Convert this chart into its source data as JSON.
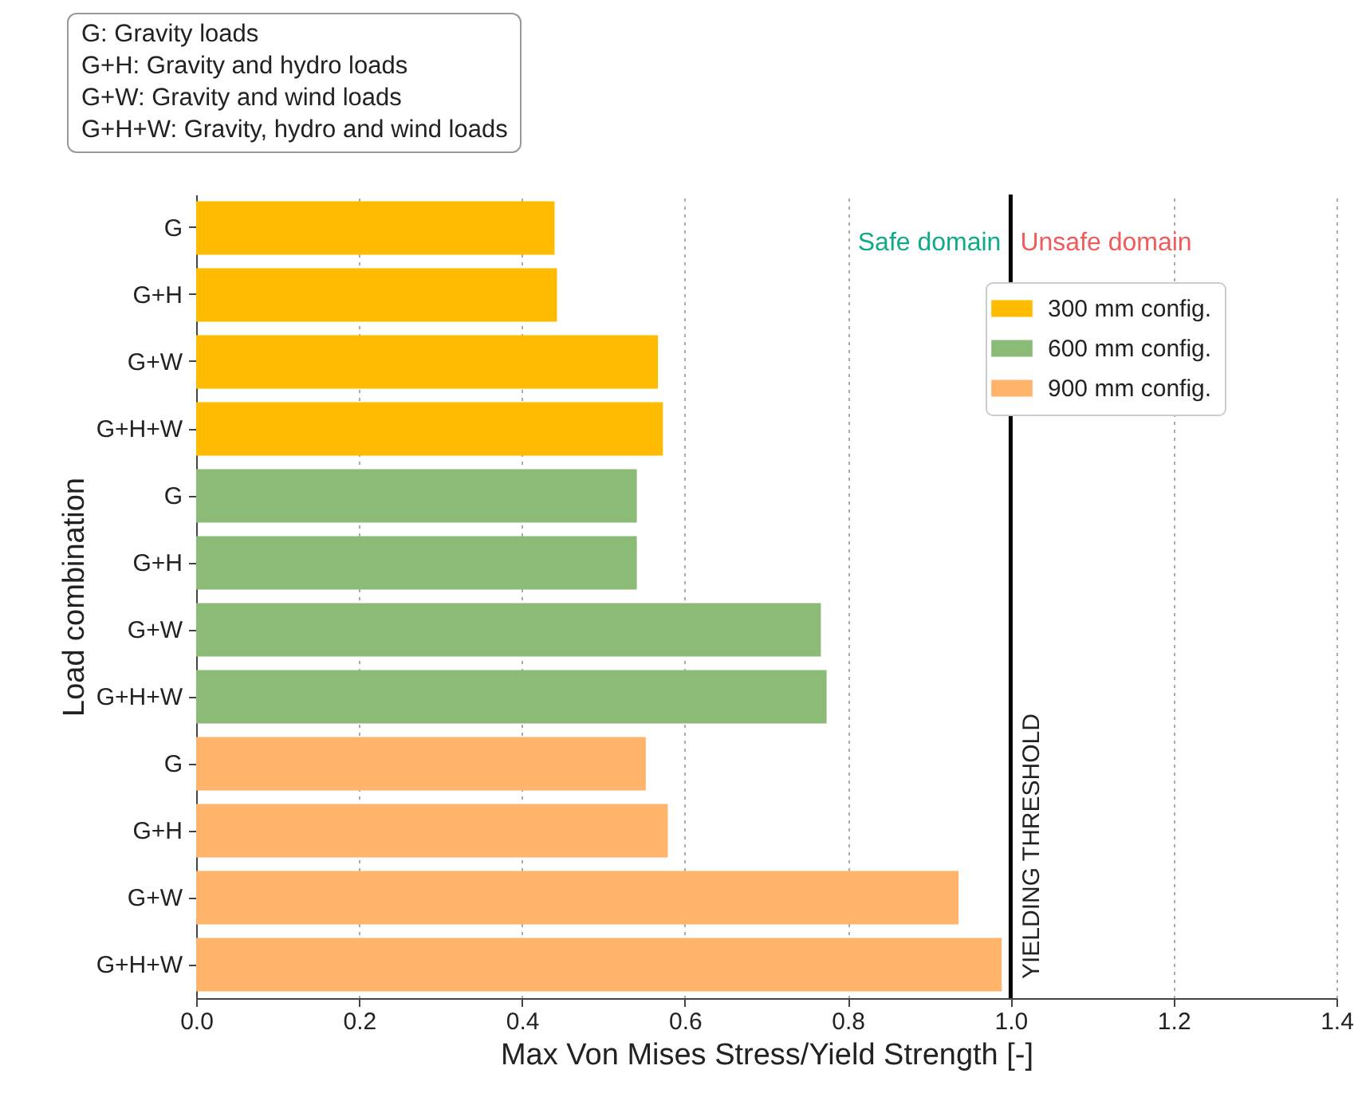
{
  "chart_data": {
    "type": "bar",
    "orientation": "horizontal",
    "xlabel": "Max Von Mises Stress/Yield Strength [-]",
    "ylabel": "Load combination",
    "categories": [
      "G",
      "G+H",
      "G+W",
      "G+H+W",
      "G",
      "G+H",
      "G+W",
      "G+H+W",
      "G",
      "G+H",
      "G+W",
      "G+H+W"
    ],
    "series": [
      {
        "name": "300 mm config.",
        "color": "#ffbb00",
        "values": [
          0.44,
          0.443,
          0.567,
          0.573,
          null,
          null,
          null,
          null,
          null,
          null,
          null,
          null
        ]
      },
      {
        "name": "600 mm config.",
        "color": "#8cbb78",
        "values": [
          null,
          null,
          null,
          null,
          0.541,
          0.541,
          0.767,
          0.774,
          null,
          null,
          null,
          null
        ]
      },
      {
        "name": "900 mm config.",
        "color": "#ffb36b",
        "values": [
          null,
          null,
          null,
          null,
          null,
          null,
          null,
          null,
          0.552,
          0.579,
          0.936,
          0.989
        ]
      }
    ],
    "xlim": [
      0,
      1.4
    ],
    "xticks": [
      {
        "value": 0,
        "label": "0.0"
      },
      {
        "value": 0.2,
        "label": "0.2"
      },
      {
        "value": 0.4,
        "label": "0.4"
      },
      {
        "value": 0.6,
        "label": "0.6"
      },
      {
        "value": 0.8,
        "label": "0.8"
      },
      {
        "value": 1,
        "label": "1.0"
      },
      {
        "value": 1.2,
        "label": "1.2"
      },
      {
        "value": 1.4,
        "label": "1.4"
      }
    ],
    "grid": "x",
    "legend": "top right",
    "ref_lines": [
      {
        "axis": "x",
        "value": 1,
        "label": "YIELDING THRESHOLD",
        "color": "#000000"
      }
    ],
    "annotations": [
      "Safe domain",
      "Unsafe domain",
      "G: Gravity loads",
      "G+H: Gravity and hydro loads",
      "G+W: Gravity and wind loads",
      "G+H+W: Gravity, hydro and wind loads"
    ]
  }
}
